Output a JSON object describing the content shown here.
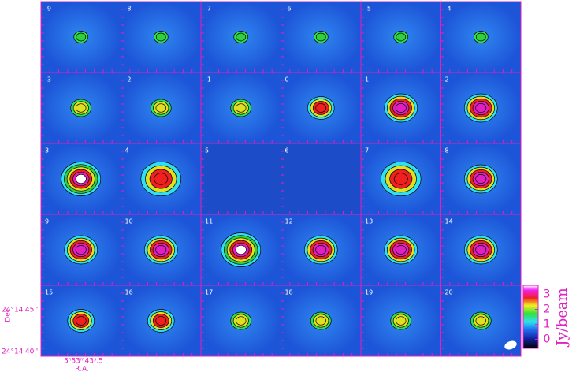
{
  "panels": [
    -9,
    -8,
    -7,
    -6,
    -5,
    -4,
    -3,
    -2,
    -1,
    0,
    1,
    2,
    3,
    4,
    5,
    6,
    7,
    8,
    9,
    10,
    11,
    12,
    13,
    14,
    15,
    16,
    17,
    18,
    19,
    20
  ],
  "axes": {
    "dec_label": "Dec",
    "dec_ticks": [
      "24°14'45''",
      "24°14'40''"
    ],
    "ra_tick": "5ʰ53ᵐ43ˢ.5",
    "ra_label": "R.A."
  },
  "colorbar": {
    "label": "Jy/beam",
    "lim": [
      -0.6,
      3.6
    ],
    "ticks": [
      0,
      1,
      2,
      3
    ]
  }
}
